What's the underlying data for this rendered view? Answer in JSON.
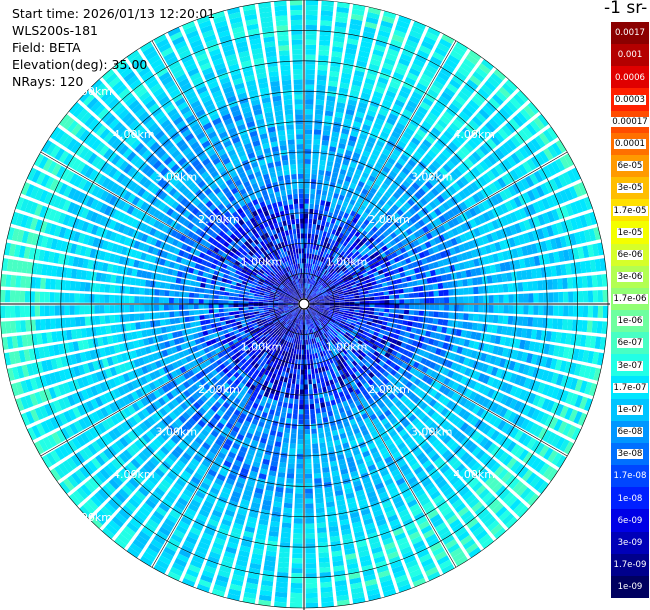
{
  "info": {
    "start_time": "Start time: 2026/01/13 12:20:01",
    "instrument": "WLS200s-181",
    "field": "Field: BETA",
    "elevation": "Elevation(deg): 35.00",
    "nrays": "NRays: 120"
  },
  "chart_data": {
    "type": "polar_ppi",
    "field": "BETA",
    "elevation_deg": 35.0,
    "n_rays": 120,
    "max_range_km": 5.0,
    "range_ring_labels": [
      "1.00km",
      "2.00km",
      "3.00km",
      "4.00km",
      "5.00km"
    ],
    "range_ring_km": [
      1.0,
      2.0,
      3.0,
      4.0,
      5.0
    ],
    "colorbar": {
      "title": "-1 sr-",
      "labels": [
        "0.0017",
        "0.001",
        "0.0006",
        "0.0003",
        "0.00017",
        "0.0001",
        "6e-05",
        "3e-05",
        "1.7e-05",
        "1e-05",
        "6e-06",
        "3e-06",
        "1.7e-06",
        "1e-06",
        "6e-07",
        "3e-07",
        "1.7e-07",
        "1e-07",
        "6e-08",
        "3e-08",
        "1.7e-08",
        "1e-08",
        "6e-09",
        "3e-09",
        "1.7e-09",
        "1e-09"
      ],
      "colors": [
        "#8b0000",
        "#b40000",
        "#e00000",
        "#ff2000",
        "#ff4c00",
        "#ff7000",
        "#ff9a00",
        "#ffbe00",
        "#ffe000",
        "#f4ff00",
        "#d6ff2a",
        "#b2ff52",
        "#92ff74",
        "#6effa0",
        "#48ffc4",
        "#22ffe6",
        "#00e6ff",
        "#00c4ff",
        "#0096ff",
        "#0070ff",
        "#0046ff",
        "#0020ff",
        "#0000e6",
        "#0000b8",
        "#00008c",
        "#000060"
      ]
    }
  }
}
